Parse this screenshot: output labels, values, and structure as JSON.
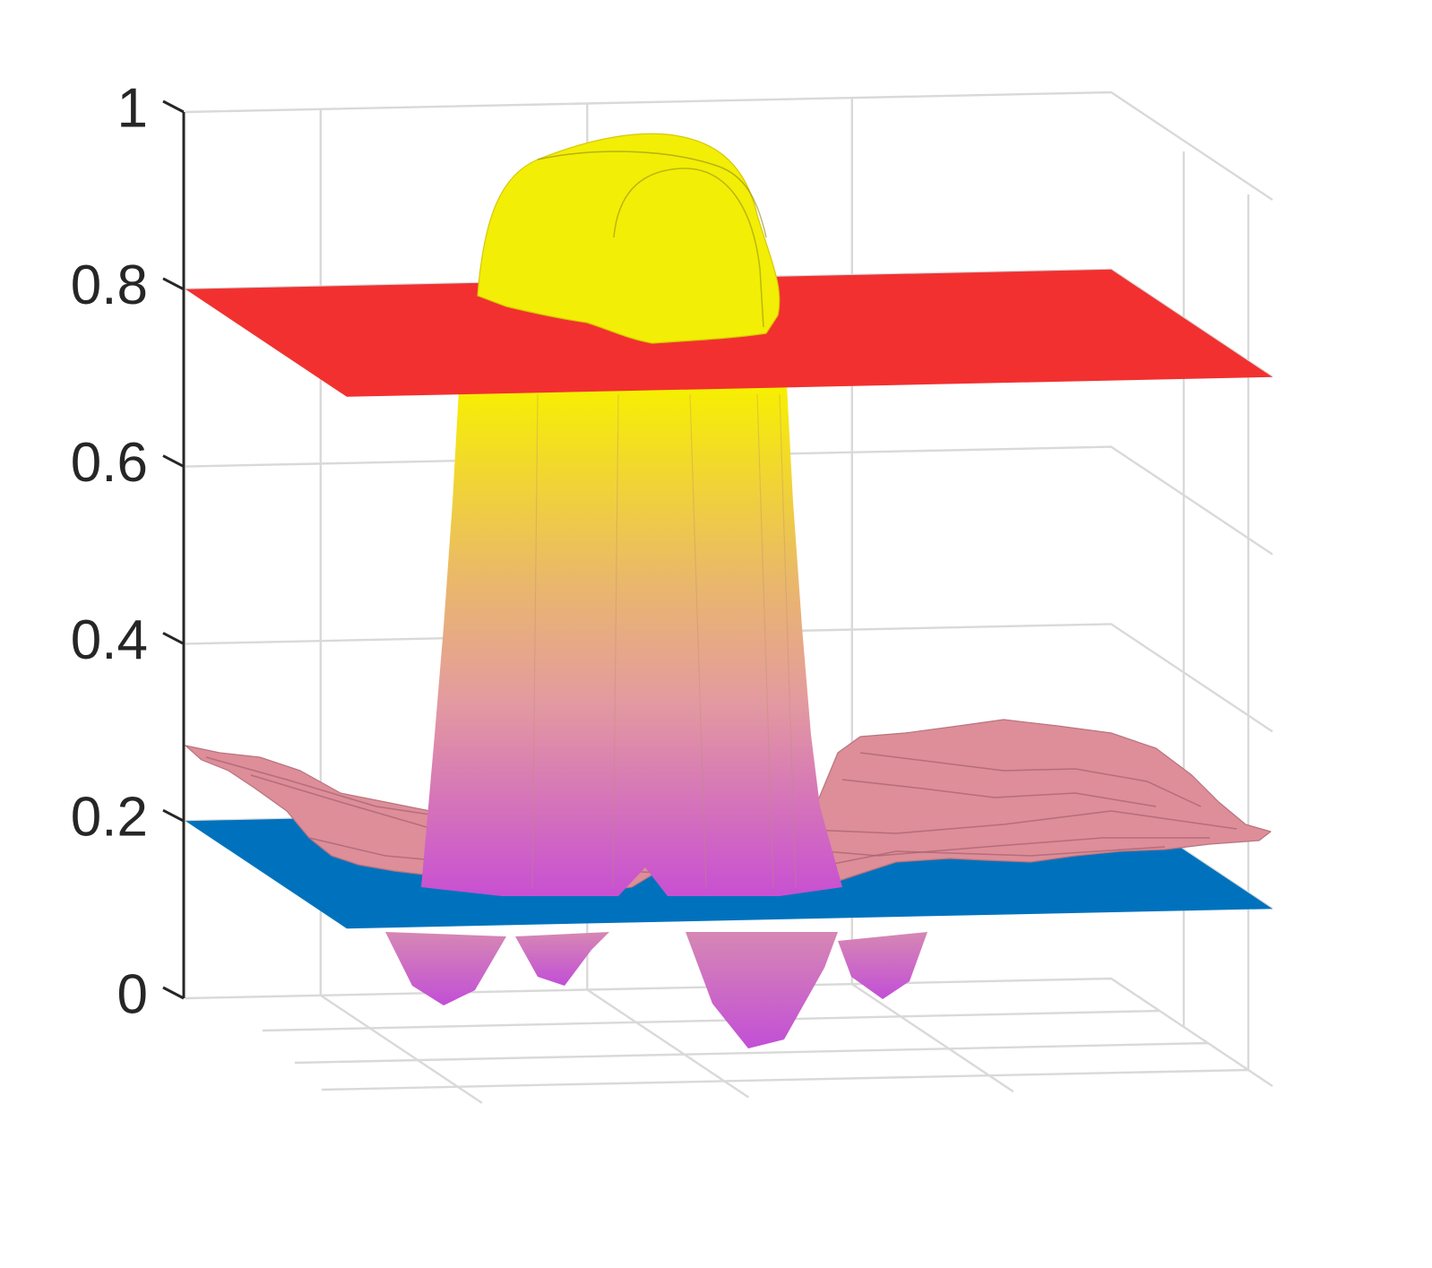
{
  "chart_data": {
    "type": "surface3d",
    "title": "",
    "xlabel": "",
    "ylabel": "",
    "zlabel": "",
    "zlim": [
      0,
      1
    ],
    "z_ticks": [
      0,
      0.2,
      0.4,
      0.6,
      0.8,
      1
    ],
    "z_tick_labels": [
      "0",
      "0.2",
      "0.4",
      "0.6",
      "0.8",
      "1"
    ],
    "x_tick_labels": [],
    "y_tick_labels": [],
    "grid": true,
    "planes": [
      {
        "level": 0.8,
        "color": "#f23030"
      },
      {
        "level": 0.2,
        "color": "#0072bd"
      }
    ],
    "surface": {
      "peak": 0.97,
      "min": 0.01,
      "colormap": [
        "#c850d2",
        "#e39aa0",
        "#eab86a",
        "#f7f000"
      ]
    },
    "noisy_surface": {
      "level": 0.2,
      "color": "#dd8e98"
    }
  }
}
